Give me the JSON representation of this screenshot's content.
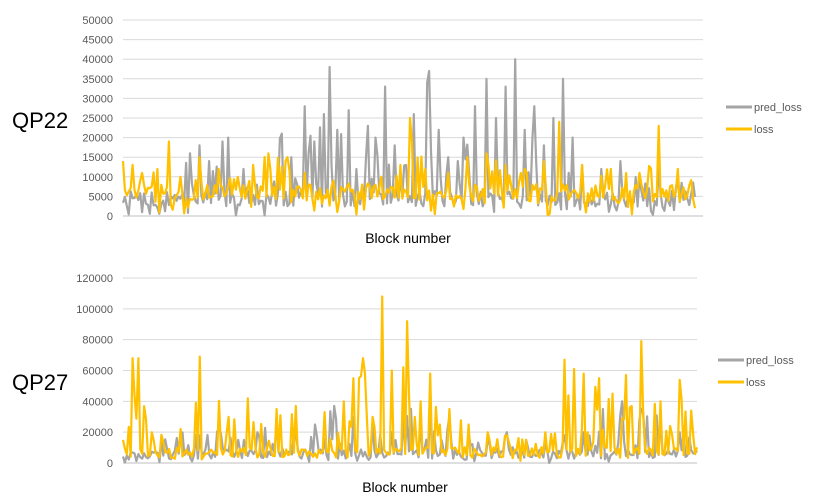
{
  "colors": {
    "pred_loss": "#a5a5a5",
    "loss": "#ffc000",
    "grid": "#d9d9d9",
    "axis": "#bfbfbf"
  },
  "chart_data": [
    {
      "type": "line",
      "panel_label": "QP22",
      "xlabel": "Block number",
      "ylabel": "",
      "ylim": [
        0,
        50000
      ],
      "yticks": [
        "50000",
        "45000",
        "40000",
        "35000",
        "30000",
        "25000",
        "20000",
        "15000",
        "10000",
        "5000",
        "0"
      ],
      "ytick_values": [
        50000,
        45000,
        40000,
        35000,
        30000,
        25000,
        20000,
        15000,
        10000,
        5000,
        0
      ],
      "grid": true,
      "legend": "right",
      "seed": 7,
      "n_points": 300,
      "series": [
        {
          "name": "pred_loss",
          "color": "#a5a5a5",
          "base": 6000,
          "noise": 4000,
          "peaks": [
            [
              10,
              1000
            ],
            [
              15,
              6000
            ],
            [
              20,
              3000
            ],
            [
              35,
              16000
            ],
            [
              40,
              18000
            ],
            [
              45,
              14000
            ],
            [
              52,
              19000
            ],
            [
              55,
              20000
            ],
            [
              63,
              12000
            ],
            [
              70,
              8000
            ],
            [
              83,
              21000
            ],
            [
              88,
              15000
            ],
            [
              95,
              28000
            ],
            [
              100,
              19000
            ],
            [
              105,
              26000
            ],
            [
              108,
              38000
            ],
            [
              112,
              22000
            ],
            [
              118,
              27000
            ],
            [
              122,
              12000
            ],
            [
              128,
              23000
            ],
            [
              132,
              20000
            ],
            [
              137,
              33000
            ],
            [
              142,
              18000
            ],
            [
              148,
              13000
            ],
            [
              152,
              26000
            ],
            [
              160,
              37000
            ],
            [
              165,
              22000
            ],
            [
              170,
              15000
            ],
            [
              175,
              14000
            ],
            [
              178,
              20000
            ],
            [
              184,
              28000
            ],
            [
              190,
              35000
            ],
            [
              195,
              25000
            ],
            [
              200,
              33000
            ],
            [
              205,
              40000
            ],
            [
              210,
              22000
            ],
            [
              215,
              28000
            ],
            [
              220,
              18000
            ],
            [
              225,
              25000
            ],
            [
              230,
              35000
            ],
            [
              235,
              20000
            ],
            [
              240,
              13000
            ],
            [
              250,
              12000
            ],
            [
              260,
              14000
            ],
            [
              270,
              10000
            ],
            [
              280,
              12000
            ],
            [
              290,
              10000
            ],
            [
              300,
              13000
            ]
          ]
        },
        {
          "name": "loss",
          "color": "#ffc000",
          "base": 9000,
          "noise": 4500,
          "peaks": [
            [
              0,
              14000
            ],
            [
              5,
              13000
            ],
            [
              10,
              11000
            ],
            [
              18,
              12000
            ],
            [
              24,
              19000
            ],
            [
              30,
              10000
            ],
            [
              40,
              15000
            ],
            [
              50,
              12000
            ],
            [
              60,
              10000
            ],
            [
              68,
              13000
            ],
            [
              76,
              16000
            ],
            [
              86,
              15000
            ],
            [
              95,
              11000
            ],
            [
              110,
              9000
            ],
            [
              125,
              8000
            ],
            [
              135,
              10000
            ],
            [
              145,
              13000
            ],
            [
              150,
              25000
            ],
            [
              158,
              12000
            ],
            [
              170,
              11000
            ],
            [
              180,
              15000
            ],
            [
              190,
              16000
            ],
            [
              200,
              13000
            ],
            [
              210,
              12000
            ],
            [
              220,
              14000
            ],
            [
              228,
              24000
            ],
            [
              240,
              13000
            ],
            [
              255,
              12000
            ],
            [
              270,
              11000
            ],
            [
              280,
              23000
            ],
            [
              290,
              12000
            ],
            [
              300,
              10000
            ]
          ]
        }
      ]
    },
    {
      "type": "line",
      "panel_label": "QP27",
      "xlabel": "Block number",
      "ylabel": "",
      "ylim": [
        0,
        120000
      ],
      "yticks": [
        "120000",
        "100000",
        "80000",
        "60000",
        "40000",
        "20000",
        "0"
      ],
      "ytick_values": [
        120000,
        100000,
        80000,
        60000,
        40000,
        20000,
        0
      ],
      "grid": true,
      "legend": "right",
      "seed": 13,
      "n_points": 300,
      "series": [
        {
          "name": "pred_loss",
          "color": "#a5a5a5",
          "base": 7000,
          "noise": 6000,
          "peaks": [
            [
              20,
              15000
            ],
            [
              30,
              20000
            ],
            [
              40,
              18000
            ],
            [
              50,
              22000
            ],
            [
              60,
              15000
            ],
            [
              70,
              20000
            ],
            [
              80,
              30000
            ],
            [
              90,
              20000
            ],
            [
              100,
              25000
            ],
            [
              110,
              37000
            ],
            [
              120,
              30000
            ],
            [
              130,
              25000
            ],
            [
              140,
              20000
            ],
            [
              150,
              35000
            ],
            [
              160,
              40000
            ],
            [
              170,
              30000
            ],
            [
              180,
              20000
            ],
            [
              190,
              15000
            ],
            [
              200,
              20000
            ],
            [
              210,
              15000
            ],
            [
              220,
              12000
            ],
            [
              230,
              18000
            ],
            [
              240,
              20000
            ],
            [
              250,
              35000
            ],
            [
              260,
              40000
            ],
            [
              270,
              35000
            ],
            [
              280,
              30000
            ],
            [
              290,
              20000
            ],
            [
              300,
              28000
            ]
          ]
        },
        {
          "name": "loss",
          "color": "#ffc000",
          "base": 8000,
          "noise": 7000,
          "peaks": [
            [
              0,
              15000
            ],
            [
              5,
              68000
            ],
            [
              8,
              68000
            ],
            [
              15,
              20000
            ],
            [
              30,
              22000
            ],
            [
              40,
              69000
            ],
            [
              55,
              30000
            ],
            [
              65,
              42000
            ],
            [
              80,
              35000
            ],
            [
              90,
              37000
            ],
            [
              105,
              33000
            ],
            [
              115,
              40000
            ],
            [
              120,
              55000
            ],
            [
              125,
              68000
            ],
            [
              130,
              30000
            ],
            [
              135,
              108000
            ],
            [
              140,
              60000
            ],
            [
              148,
              92000
            ],
            [
              155,
              40000
            ],
            [
              160,
              58000
            ],
            [
              170,
              35000
            ],
            [
              180,
              25000
            ],
            [
              190,
              20000
            ],
            [
              200,
              18000
            ],
            [
              210,
              15000
            ],
            [
              220,
              20000
            ],
            [
              230,
              67000
            ],
            [
              235,
              61000
            ],
            [
              240,
              58000
            ],
            [
              248,
              55000
            ],
            [
              255,
              45000
            ],
            [
              262,
              57000
            ],
            [
              270,
              79000
            ],
            [
              280,
              40000
            ],
            [
              290,
              54000
            ],
            [
              296,
              34000
            ],
            [
              300,
              5000
            ]
          ]
        }
      ]
    }
  ]
}
